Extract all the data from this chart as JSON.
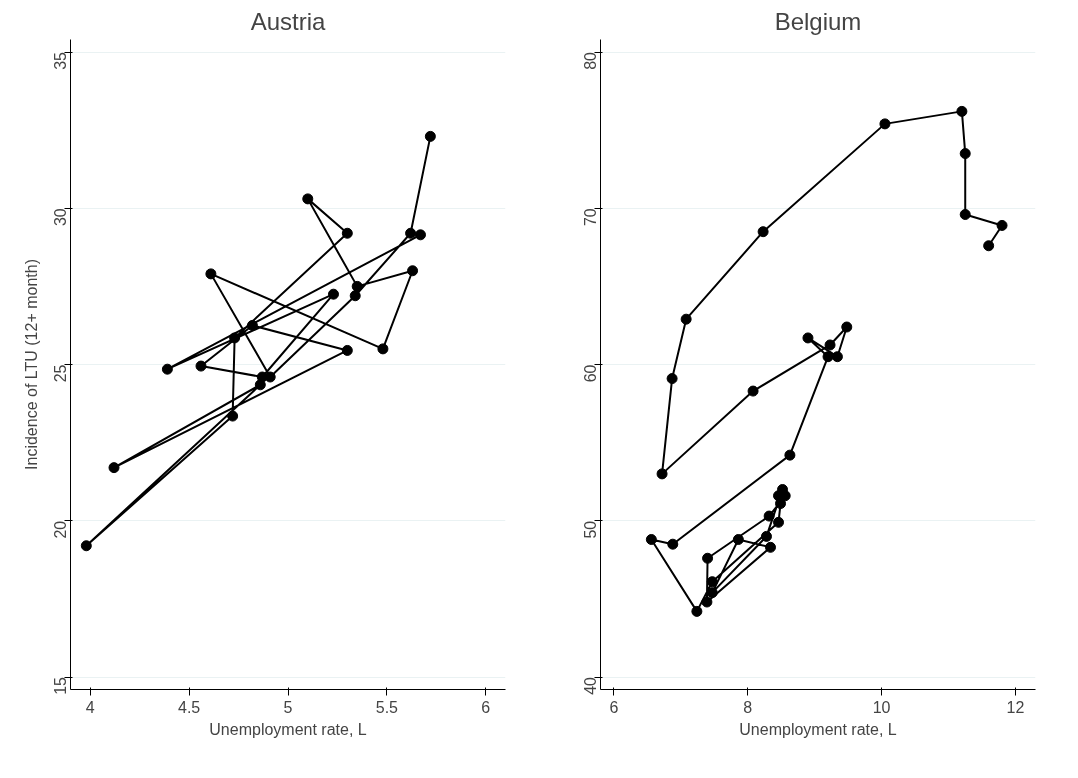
{
  "chart_data": [
    {
      "type": "line",
      "title": "Austria",
      "xlabel": "Unemployment rate, L",
      "ylabel": "Incidence of LTU (12+ month)",
      "marker": "circle",
      "grid": "y",
      "xlim": [
        3.9,
        6.1
      ],
      "ylim": [
        14.6,
        35.4
      ],
      "xticks": [
        4,
        4.5,
        5,
        5.5,
        6
      ],
      "yticks": [
        15,
        20,
        25,
        30,
        35
      ],
      "series": [
        {
          "color": "#000000",
          "x": [
            5.72,
            5.62,
            5.34,
            4.91,
            4.61,
            5.48,
            5.63,
            5.35,
            5.1,
            5.3,
            4.73,
            4.72,
            3.98,
            4.86,
            4.12,
            5.3,
            4.82,
            4.56,
            4.87,
            5.23,
            4.39,
            5.67
          ],
          "values": [
            32.3,
            29.2,
            27.2,
            24.6,
            27.9,
            25.5,
            28.0,
            27.5,
            30.3,
            29.2,
            25.85,
            23.35,
            19.2,
            24.35,
            21.7,
            25.45,
            26.25,
            24.95,
            24.6,
            27.25,
            24.85,
            29.15
          ]
        }
      ]
    },
    {
      "type": "line",
      "title": "Belgium",
      "xlabel": "Unemployment rate, L",
      "marker": "circle",
      "grid": "y",
      "xlim": [
        5.8,
        12.3
      ],
      "ylim": [
        39.2,
        80.8
      ],
      "xticks": [
        6,
        8,
        10,
        12
      ],
      "yticks": [
        40,
        50,
        60,
        70,
        80
      ],
      "series": [
        {
          "color": "#000000",
          "x": [
            8.46,
            8.56,
            8.32,
            7.4,
            7.39,
            8.34,
            7.86,
            7.47,
            8.28,
            8.52,
            8.49,
            8.46,
            7.47,
            7.24,
            6.56,
            6.88,
            8.63,
            9.2,
            8.9,
            9.34,
            9.48,
            9.23,
            8.08,
            6.72,
            6.87,
            7.08,
            8.23,
            10.05,
            11.2,
            11.25,
            11.25,
            11.8,
            11.6
          ],
          "values": [
            51.6,
            51.6,
            50.3,
            47.6,
            44.8,
            48.3,
            48.8,
            45.4,
            49.0,
            52.0,
            51.1,
            49.9,
            46.1,
            44.2,
            48.8,
            48.5,
            54.2,
            60.5,
            61.7,
            60.5,
            62.4,
            61.25,
            58.3,
            53.0,
            59.1,
            62.9,
            68.5,
            75.4,
            76.2,
            73.5,
            69.6,
            68.9,
            67.6
          ]
        }
      ]
    }
  ]
}
